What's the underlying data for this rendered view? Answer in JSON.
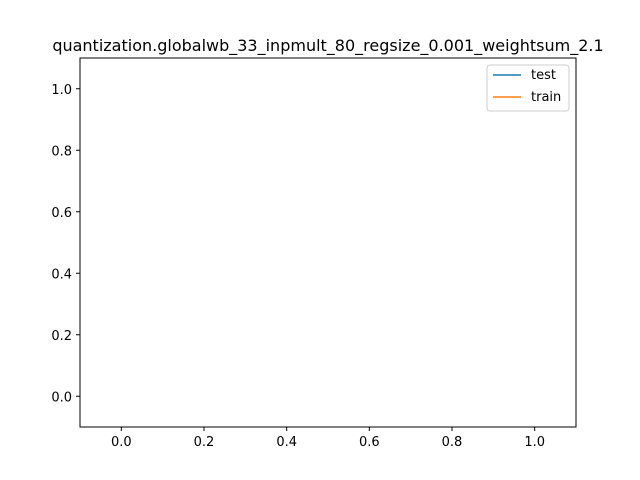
{
  "chart_data": {
    "type": "line",
    "title": "quantization.globalwb_33_inpmult_80_regsize_0.001_weightsum_2.1",
    "xlabel": "",
    "ylabel": "",
    "xlim": [
      -0.1,
      1.1
    ],
    "ylim": [
      -0.1,
      1.1
    ],
    "x_ticks": [
      "0.0",
      "0.2",
      "0.4",
      "0.6",
      "0.8",
      "1.0"
    ],
    "y_ticks": [
      "0.0",
      "0.2",
      "0.4",
      "0.6",
      "0.8",
      "1.0"
    ],
    "grid": false,
    "legend_position": "top-right",
    "series": [
      {
        "name": "test",
        "color": "#1f77b4",
        "x": [],
        "y": []
      },
      {
        "name": "train",
        "color": "#ff7f0e",
        "x": [],
        "y": []
      }
    ]
  }
}
